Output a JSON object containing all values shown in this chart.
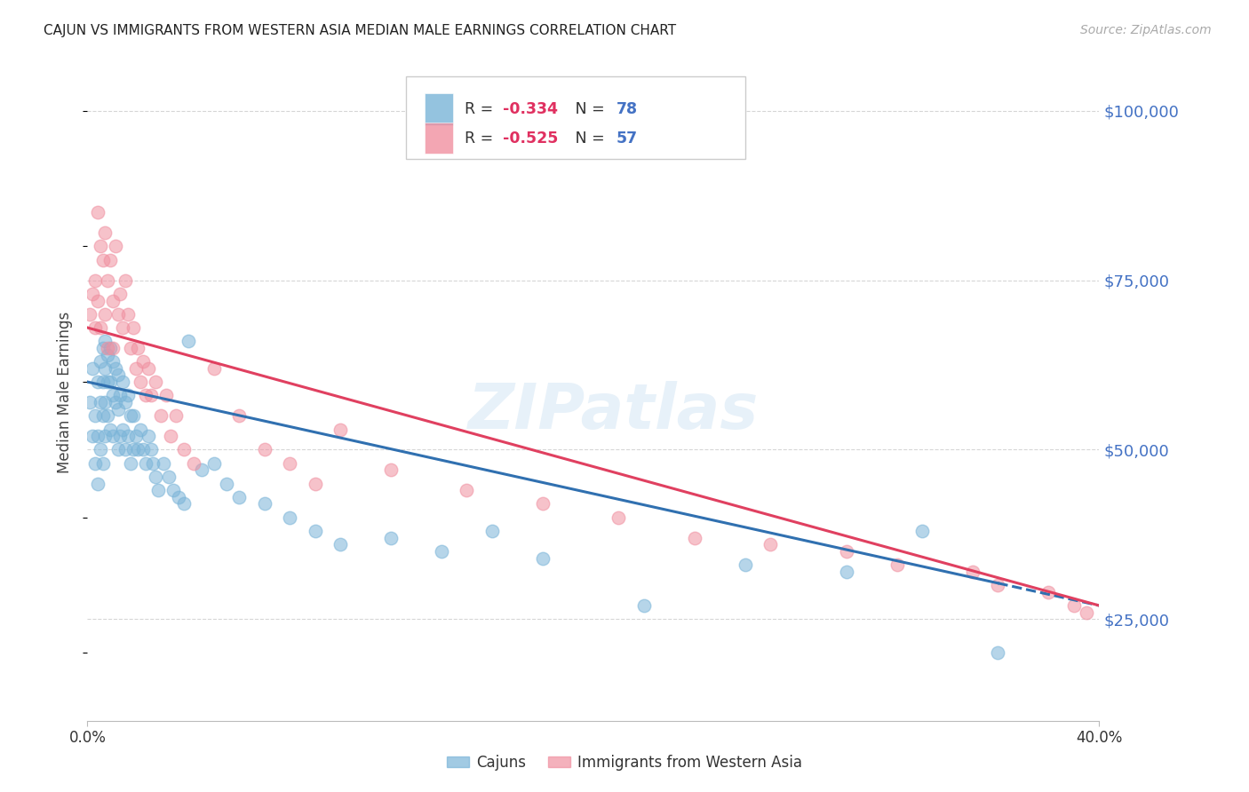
{
  "title": "CAJUN VS IMMIGRANTS FROM WESTERN ASIA MEDIAN MALE EARNINGS CORRELATION CHART",
  "source": "Source: ZipAtlas.com",
  "ylabel": "Median Male Earnings",
  "y_ticks": [
    25000,
    50000,
    75000,
    100000
  ],
  "y_tick_labels": [
    "$25,000",
    "$50,000",
    "$75,000",
    "$100,000"
  ],
  "x_min": 0.0,
  "x_max": 0.4,
  "y_min": 10000,
  "y_max": 107000,
  "cajun_color": "#7ab4d8",
  "western_asia_color": "#f090a0",
  "cajun_line_color": "#3070b0",
  "wa_line_color": "#e04060",
  "cajun_R": -0.334,
  "cajun_N": 78,
  "western_asia_R": -0.525,
  "western_asia_N": 57,
  "cajun_scatter_x": [
    0.001,
    0.002,
    0.002,
    0.003,
    0.003,
    0.004,
    0.004,
    0.004,
    0.005,
    0.005,
    0.005,
    0.006,
    0.006,
    0.006,
    0.006,
    0.007,
    0.007,
    0.007,
    0.007,
    0.008,
    0.008,
    0.008,
    0.009,
    0.009,
    0.009,
    0.01,
    0.01,
    0.01,
    0.011,
    0.011,
    0.012,
    0.012,
    0.012,
    0.013,
    0.013,
    0.014,
    0.014,
    0.015,
    0.015,
    0.016,
    0.016,
    0.017,
    0.017,
    0.018,
    0.018,
    0.019,
    0.02,
    0.021,
    0.022,
    0.023,
    0.024,
    0.025,
    0.026,
    0.027,
    0.028,
    0.03,
    0.032,
    0.034,
    0.036,
    0.038,
    0.04,
    0.045,
    0.05,
    0.055,
    0.06,
    0.07,
    0.08,
    0.09,
    0.1,
    0.12,
    0.14,
    0.16,
    0.18,
    0.22,
    0.26,
    0.3,
    0.33,
    0.36
  ],
  "cajun_scatter_y": [
    57000,
    52000,
    62000,
    55000,
    48000,
    60000,
    52000,
    45000,
    63000,
    57000,
    50000,
    65000,
    60000,
    55000,
    48000,
    66000,
    62000,
    57000,
    52000,
    64000,
    60000,
    55000,
    65000,
    60000,
    53000,
    63000,
    58000,
    52000,
    62000,
    57000,
    61000,
    56000,
    50000,
    58000,
    52000,
    60000,
    53000,
    57000,
    50000,
    58000,
    52000,
    55000,
    48000,
    55000,
    50000,
    52000,
    50000,
    53000,
    50000,
    48000,
    52000,
    50000,
    48000,
    46000,
    44000,
    48000,
    46000,
    44000,
    43000,
    42000,
    66000,
    47000,
    48000,
    45000,
    43000,
    42000,
    40000,
    38000,
    36000,
    37000,
    35000,
    38000,
    34000,
    27000,
    33000,
    32000,
    38000,
    20000
  ],
  "western_asia_scatter_x": [
    0.001,
    0.002,
    0.003,
    0.003,
    0.004,
    0.004,
    0.005,
    0.005,
    0.006,
    0.007,
    0.007,
    0.008,
    0.008,
    0.009,
    0.01,
    0.01,
    0.011,
    0.012,
    0.013,
    0.014,
    0.015,
    0.016,
    0.017,
    0.018,
    0.019,
    0.02,
    0.021,
    0.022,
    0.023,
    0.024,
    0.025,
    0.027,
    0.029,
    0.031,
    0.033,
    0.035,
    0.038,
    0.042,
    0.05,
    0.06,
    0.07,
    0.08,
    0.09,
    0.1,
    0.12,
    0.15,
    0.18,
    0.21,
    0.24,
    0.27,
    0.3,
    0.32,
    0.35,
    0.36,
    0.38,
    0.39,
    0.395
  ],
  "western_asia_scatter_y": [
    70000,
    73000,
    75000,
    68000,
    85000,
    72000,
    80000,
    68000,
    78000,
    82000,
    70000,
    75000,
    65000,
    78000,
    72000,
    65000,
    80000,
    70000,
    73000,
    68000,
    75000,
    70000,
    65000,
    68000,
    62000,
    65000,
    60000,
    63000,
    58000,
    62000,
    58000,
    60000,
    55000,
    58000,
    52000,
    55000,
    50000,
    48000,
    62000,
    55000,
    50000,
    48000,
    45000,
    53000,
    47000,
    44000,
    42000,
    40000,
    37000,
    36000,
    35000,
    33000,
    32000,
    30000,
    29000,
    27000,
    26000
  ],
  "watermark_text": "ZIPatlas",
  "background_color": "#ffffff",
  "grid_color": "#cccccc",
  "tick_color": "#4472c4",
  "title_color": "#222222",
  "source_color": "#aaaaaa"
}
